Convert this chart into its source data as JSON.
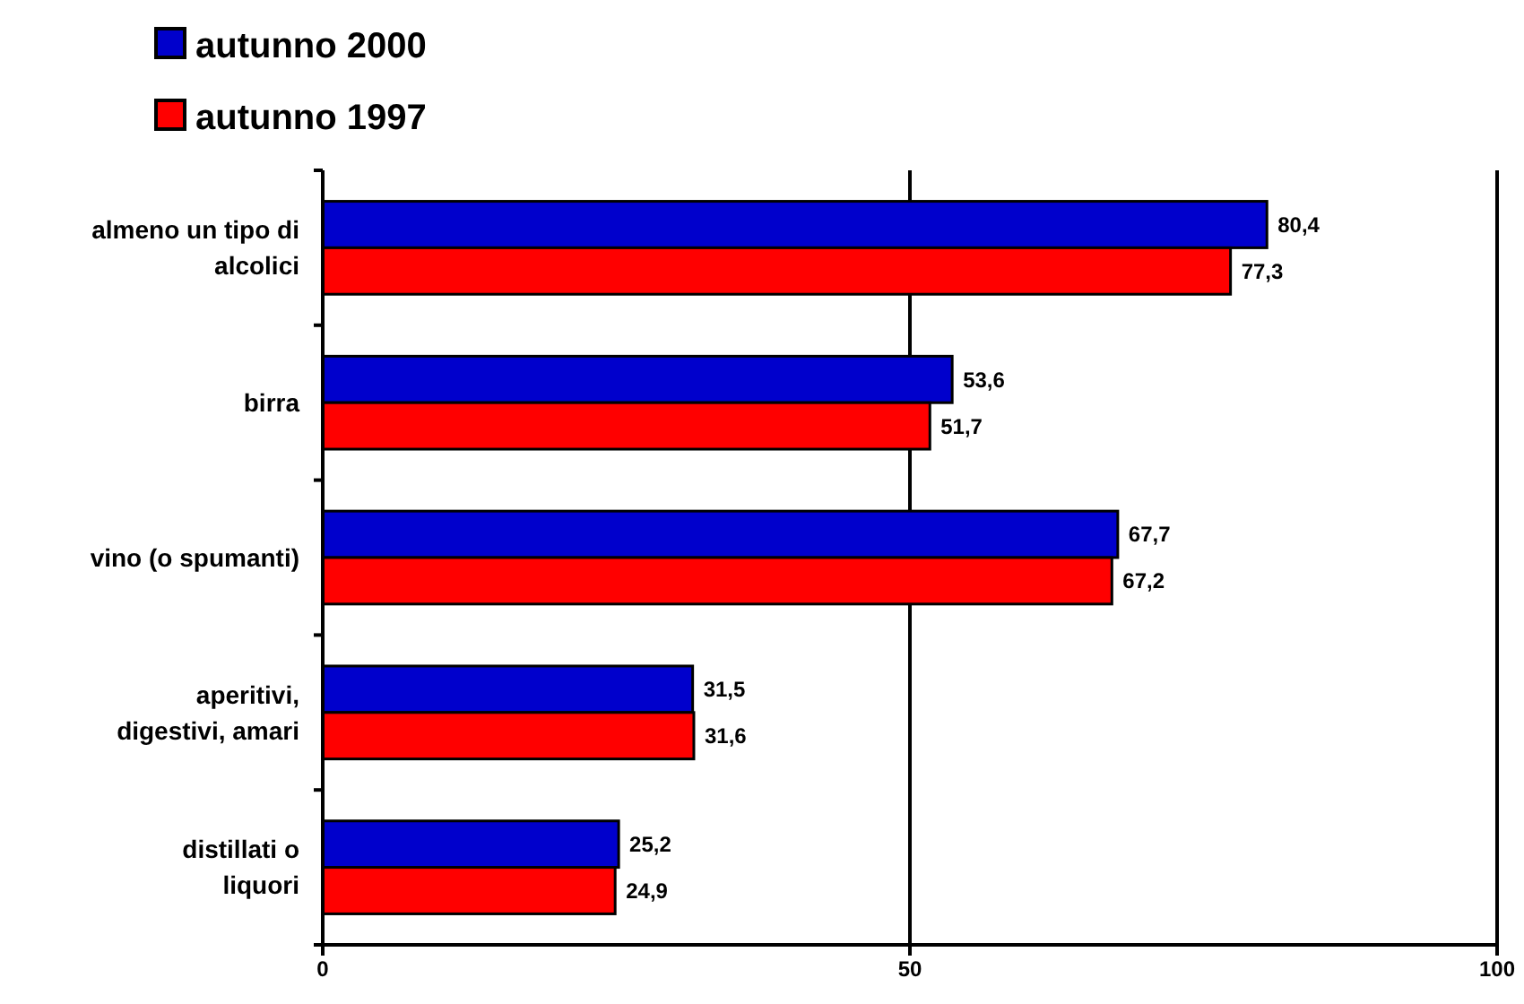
{
  "chart_data": {
    "type": "bar",
    "orientation": "horizontal",
    "categories": [
      "almeno un tipo di alcolici",
      "birra",
      "vino (o spumanti)",
      "aperitivi, digestivi, amari",
      "distillati o liquori"
    ],
    "series": [
      {
        "name": "autunno 2000",
        "color": "#0000cc",
        "values": [
          80.4,
          53.6,
          67.7,
          31.5,
          25.2
        ],
        "value_labels": [
          "80,4",
          "53,6",
          "67,7",
          "31,5",
          "25,2"
        ]
      },
      {
        "name": "autunno 1997",
        "color": "#ff0000",
        "values": [
          77.3,
          51.7,
          67.2,
          31.6,
          24.9
        ],
        "value_labels": [
          "77,3",
          "51,7",
          "67,2",
          "31,6",
          "24,9"
        ]
      }
    ],
    "xlim": [
      0,
      100
    ],
    "xticks": [
      0,
      50,
      100
    ],
    "grid": "x",
    "legend": "top left"
  }
}
